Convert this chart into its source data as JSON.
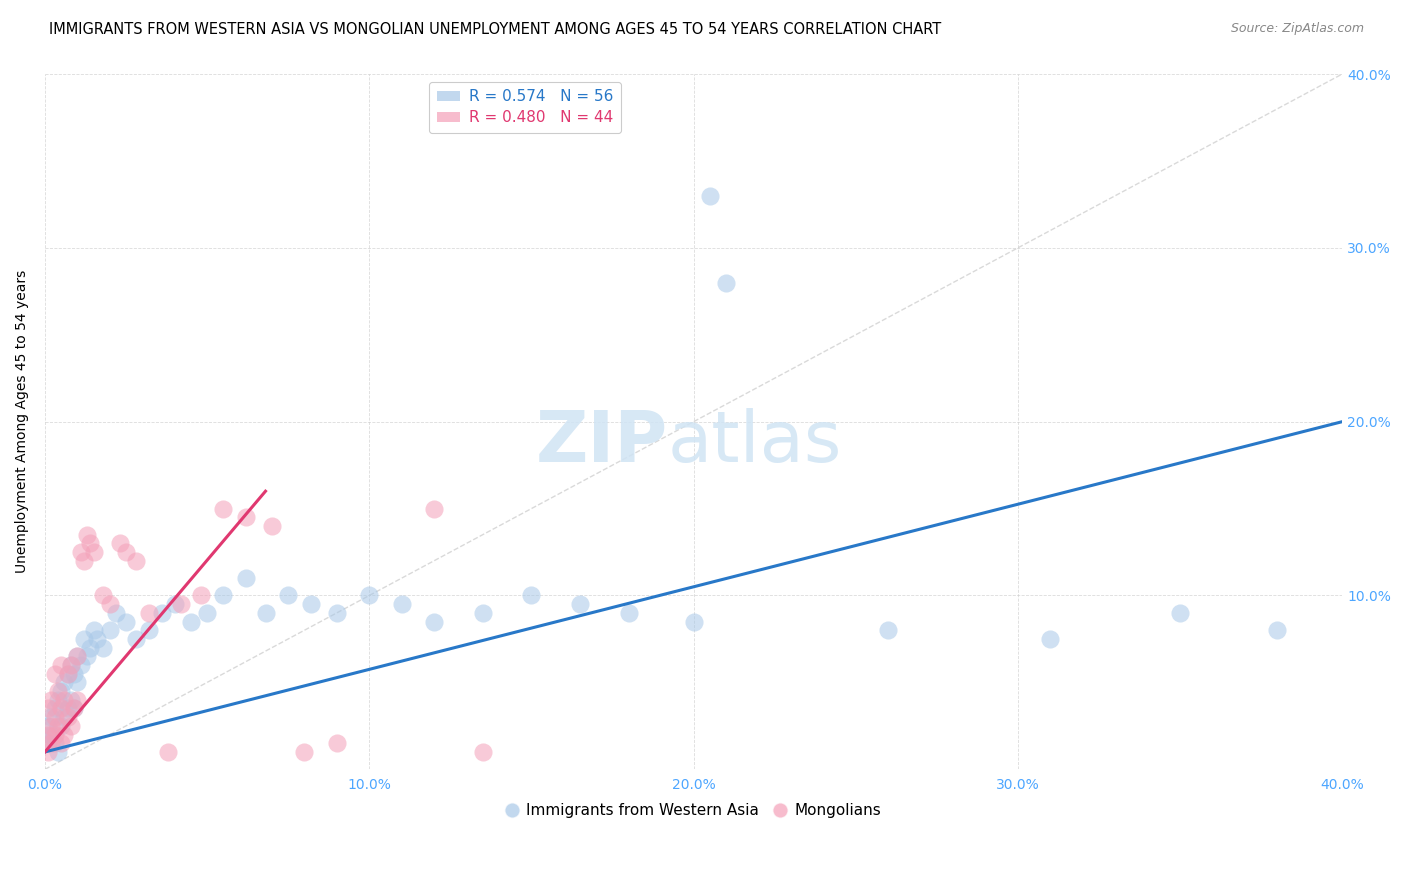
{
  "title": "IMMIGRANTS FROM WESTERN ASIA VS MONGOLIAN UNEMPLOYMENT AMONG AGES 45 TO 54 YEARS CORRELATION CHART",
  "source": "Source: ZipAtlas.com",
  "tick_color": "#4da6ff",
  "ylabel": "Unemployment Among Ages 45 to 54 years",
  "xlim": [
    0.0,
    0.4
  ],
  "ylim": [
    0.0,
    0.4
  ],
  "xticks": [
    0.0,
    0.1,
    0.2,
    0.3,
    0.4
  ],
  "xtick_labels": [
    "0.0%",
    "10.0%",
    "20.0%",
    "30.0%",
    "40.0%"
  ],
  "ytick_labels_right": [
    "10.0%",
    "20.0%",
    "30.0%",
    "40.0%"
  ],
  "ytick_vals_right": [
    0.1,
    0.2,
    0.3,
    0.4
  ],
  "blue_color": "#a8c8e8",
  "pink_color": "#f4a0b8",
  "blue_line_color": "#2878c8",
  "pink_line_color": "#e03870",
  "diag_color": "#d0d0d0",
  "legend_blue_r": "R = 0.574",
  "legend_blue_n": "N = 56",
  "legend_pink_r": "R = 0.480",
  "legend_pink_n": "N = 44",
  "blue_scatter_x": [
    0.001,
    0.001,
    0.002,
    0.002,
    0.003,
    0.003,
    0.004,
    0.004,
    0.005,
    0.005,
    0.006,
    0.006,
    0.007,
    0.007,
    0.008,
    0.008,
    0.009,
    0.009,
    0.01,
    0.01,
    0.011,
    0.012,
    0.013,
    0.014,
    0.015,
    0.016,
    0.018,
    0.02,
    0.022,
    0.025,
    0.028,
    0.032,
    0.036,
    0.04,
    0.045,
    0.05,
    0.055,
    0.062,
    0.068,
    0.075,
    0.082,
    0.09,
    0.1,
    0.11,
    0.12,
    0.135,
    0.15,
    0.165,
    0.18,
    0.2,
    0.205,
    0.21,
    0.26,
    0.31,
    0.35,
    0.38
  ],
  "blue_scatter_y": [
    0.015,
    0.025,
    0.02,
    0.03,
    0.015,
    0.035,
    0.01,
    0.04,
    0.025,
    0.045,
    0.03,
    0.05,
    0.035,
    0.055,
    0.04,
    0.06,
    0.035,
    0.055,
    0.05,
    0.065,
    0.06,
    0.075,
    0.065,
    0.07,
    0.08,
    0.075,
    0.07,
    0.08,
    0.09,
    0.085,
    0.075,
    0.08,
    0.09,
    0.095,
    0.085,
    0.09,
    0.1,
    0.11,
    0.09,
    0.1,
    0.095,
    0.09,
    0.1,
    0.095,
    0.085,
    0.09,
    0.1,
    0.095,
    0.09,
    0.085,
    0.33,
    0.28,
    0.08,
    0.075,
    0.09,
    0.08
  ],
  "pink_scatter_x": [
    0.001,
    0.001,
    0.001,
    0.002,
    0.002,
    0.002,
    0.003,
    0.003,
    0.003,
    0.004,
    0.004,
    0.005,
    0.005,
    0.005,
    0.006,
    0.006,
    0.007,
    0.007,
    0.008,
    0.008,
    0.009,
    0.01,
    0.01,
    0.011,
    0.012,
    0.013,
    0.014,
    0.015,
    0.018,
    0.02,
    0.023,
    0.025,
    0.028,
    0.032,
    0.038,
    0.042,
    0.048,
    0.055,
    0.062,
    0.07,
    0.08,
    0.09,
    0.12,
    0.135
  ],
  "pink_scatter_y": [
    0.01,
    0.02,
    0.035,
    0.015,
    0.025,
    0.04,
    0.02,
    0.03,
    0.055,
    0.025,
    0.045,
    0.015,
    0.035,
    0.06,
    0.02,
    0.04,
    0.03,
    0.055,
    0.025,
    0.06,
    0.035,
    0.04,
    0.065,
    0.125,
    0.12,
    0.135,
    0.13,
    0.125,
    0.1,
    0.095,
    0.13,
    0.125,
    0.12,
    0.09,
    0.01,
    0.095,
    0.1,
    0.15,
    0.145,
    0.14,
    0.01,
    0.015,
    0.15,
    0.01
  ],
  "blue_trendline_x": [
    0.0,
    0.4
  ],
  "blue_trendline_y": [
    0.01,
    0.2
  ],
  "pink_trendline_x": [
    0.0,
    0.068
  ],
  "pink_trendline_y": [
    0.01,
    0.16
  ],
  "background_color": "#ffffff",
  "grid_color": "#cccccc",
  "title_fontsize": 10.5,
  "axis_label_fontsize": 10,
  "tick_fontsize": 10,
  "legend_fontsize": 11
}
